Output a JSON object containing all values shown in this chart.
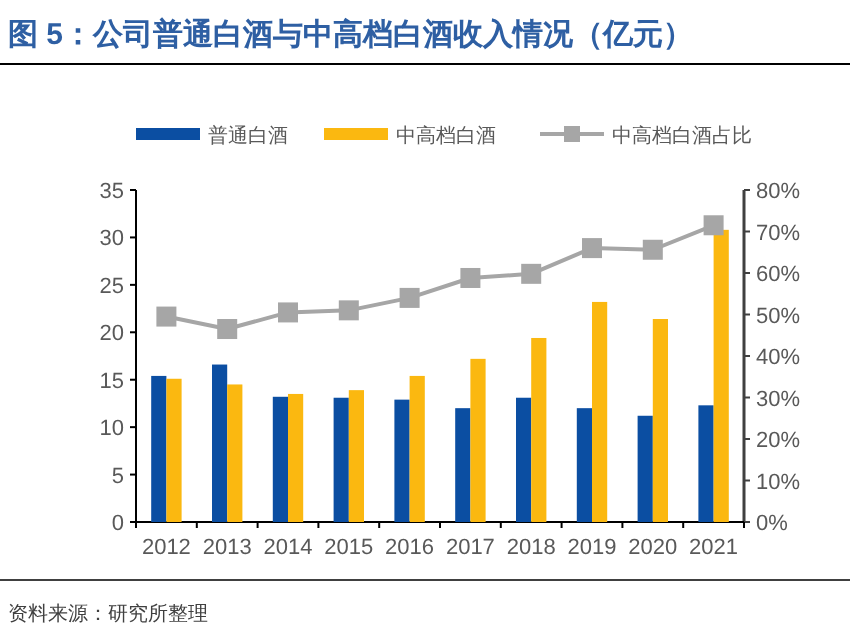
{
  "chart_data": {
    "type": "bar",
    "title": "图 5：公司普通白酒与中高档白酒收入情况（亿元）",
    "categories": [
      "2012",
      "2013",
      "2014",
      "2015",
      "2016",
      "2017",
      "2018",
      "2019",
      "2020",
      "2021"
    ],
    "series": [
      {
        "name": "普通白酒",
        "color": "#0b4ea2",
        "values": [
          15.4,
          16.6,
          13.2,
          13.1,
          12.9,
          12.0,
          13.1,
          12.0,
          11.2,
          12.3
        ]
      },
      {
        "name": "中高档白酒",
        "color": "#fbb810",
        "values": [
          15.1,
          14.5,
          13.5,
          13.9,
          15.4,
          17.2,
          19.4,
          23.2,
          21.4,
          30.8
        ]
      },
      {
        "name": "中高档白酒占比",
        "type": "line",
        "axis": "y2",
        "color": "#a6a6a6",
        "marker": "square",
        "values": [
          49.5,
          46.5,
          50.5,
          51,
          54,
          58.8,
          59.8,
          66,
          65.6,
          71.5
        ]
      }
    ],
    "ylim": [
      0,
      35
    ],
    "yticks": [
      0,
      5,
      10,
      15,
      20,
      25,
      30,
      35
    ],
    "y2lim": [
      0,
      80
    ],
    "y2ticks": [
      {
        "value": 0,
        "label": "0%"
      },
      {
        "value": 10,
        "label": "10%"
      },
      {
        "value": 20,
        "label": "20%"
      },
      {
        "value": 30,
        "label": "30%"
      },
      {
        "value": 40,
        "label": "40%"
      },
      {
        "value": 50,
        "label": "50%"
      },
      {
        "value": 60,
        "label": "60%"
      },
      {
        "value": 70,
        "label": "70%"
      },
      {
        "value": 80,
        "label": "80%"
      }
    ],
    "legend": "top",
    "grid": false,
    "annotations": [
      "资料来源：研究所整理"
    ]
  }
}
